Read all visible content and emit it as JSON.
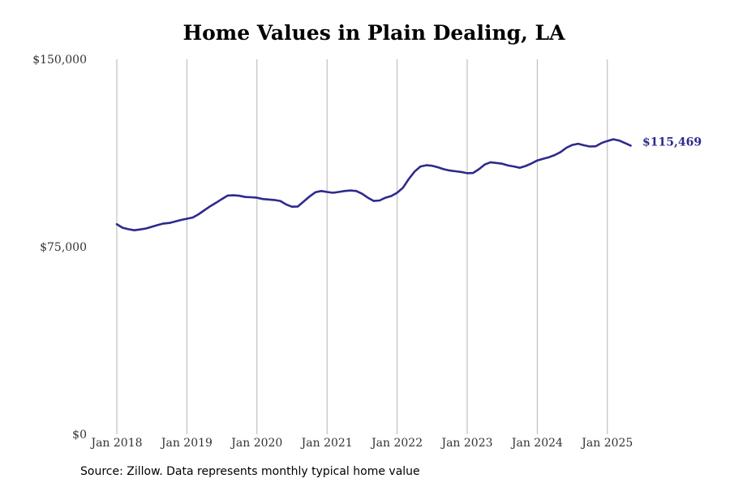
{
  "chart_data": {
    "type": "line",
    "title": "Home Values in Plain Dealing, LA",
    "xlabel": "",
    "ylabel": "",
    "ylim": [
      0,
      150000
    ],
    "y_ticks": [
      0,
      75000,
      150000
    ],
    "y_tick_labels": [
      "$0",
      "$75,000",
      "$150,000"
    ],
    "x_ticks": [
      "2018-01",
      "2019-01",
      "2020-01",
      "2021-01",
      "2022-01",
      "2023-01",
      "2024-01",
      "2025-01"
    ],
    "x_tick_labels": [
      "Jan 2018",
      "Jan 2019",
      "Jan 2020",
      "Jan 2021",
      "Jan 2022",
      "Jan 2023",
      "Jan 2024",
      "Jan 2025"
    ],
    "grid": "vertical lines at x ticks",
    "line_color": "#2e2a8c",
    "series": [
      {
        "x": [
          "2018-01",
          "2018-02",
          "2018-03",
          "2018-04",
          "2018-05",
          "2018-06",
          "2018-07",
          "2018-08",
          "2018-09",
          "2018-10",
          "2018-11",
          "2018-12",
          "2019-01",
          "2019-02",
          "2019-03",
          "2019-04",
          "2019-05",
          "2019-06",
          "2019-07",
          "2019-08",
          "2019-09",
          "2019-10",
          "2019-11",
          "2019-12",
          "2020-01",
          "2020-02",
          "2020-03",
          "2020-04",
          "2020-05",
          "2020-06",
          "2020-07",
          "2020-08",
          "2020-09",
          "2020-10",
          "2020-11",
          "2020-12",
          "2021-01",
          "2021-02",
          "2021-03",
          "2021-04",
          "2021-05",
          "2021-06",
          "2021-07",
          "2021-08",
          "2021-09",
          "2021-10",
          "2021-11",
          "2021-12",
          "2022-01",
          "2022-02",
          "2022-03",
          "2022-04",
          "2022-05",
          "2022-06",
          "2022-07",
          "2022-08",
          "2022-09",
          "2022-10",
          "2022-11",
          "2022-12",
          "2023-01",
          "2023-02",
          "2023-03",
          "2023-04",
          "2023-05",
          "2023-06",
          "2023-07",
          "2023-08",
          "2023-09",
          "2023-10",
          "2023-11",
          "2023-12",
          "2024-01",
          "2024-02",
          "2024-03",
          "2024-04",
          "2024-05",
          "2024-06",
          "2024-07",
          "2024-08",
          "2024-09",
          "2024-10",
          "2024-11",
          "2024-12",
          "2025-01",
          "2025-02",
          "2025-03",
          "2025-04",
          "2025-05"
        ],
        "values": [
          84000,
          82600,
          82000,
          81600,
          81900,
          82300,
          83000,
          83700,
          84300,
          84500,
          85100,
          85700,
          86200,
          86700,
          88000,
          89600,
          91200,
          92600,
          94100,
          95500,
          95600,
          95400,
          94900,
          94800,
          94600,
          94100,
          93900,
          93700,
          93300,
          91900,
          91000,
          91100,
          93100,
          95100,
          96800,
          97300,
          96900,
          96600,
          96900,
          97300,
          97500,
          97300,
          96200,
          94600,
          93300,
          93500,
          94600,
          95300,
          96600,
          98600,
          102100,
          105100,
          107100,
          107600,
          107400,
          106800,
          106000,
          105500,
          105200,
          104900,
          104400,
          104500,
          106000,
          107900,
          108800,
          108500,
          108200,
          107500,
          107100,
          106600,
          107300,
          108300,
          109500,
          110200,
          110800,
          111700,
          112900,
          114600,
          115700,
          116200,
          115600,
          115100,
          115200,
          116500,
          117300,
          118000,
          117500,
          116500,
          115469
        ]
      }
    ],
    "end_label": "$115,469"
  },
  "source": "Source: Zillow. Data represents monthly typical home value"
}
